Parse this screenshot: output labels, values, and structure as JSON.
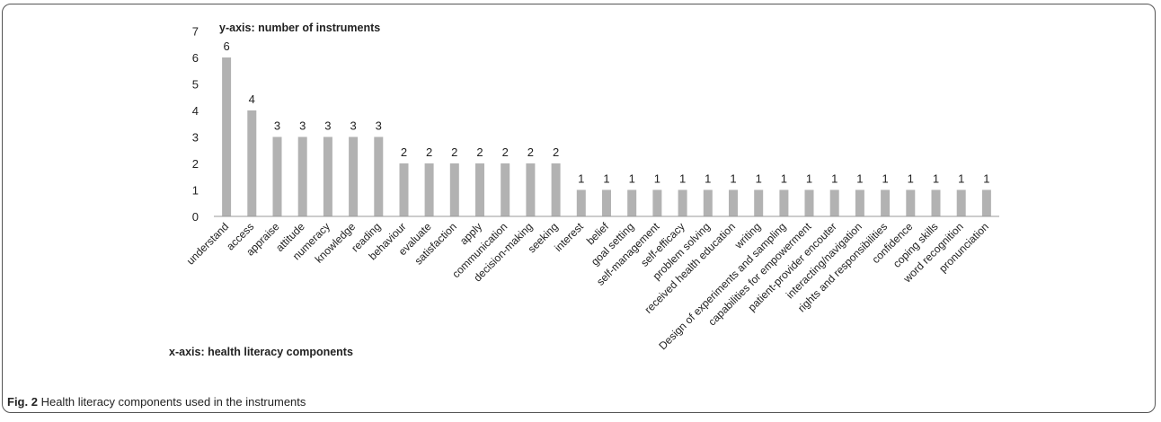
{
  "figure": {
    "label": "Fig. 2",
    "caption": "Health literacy components used in the instruments"
  },
  "chart_data": {
    "type": "bar",
    "ylabel": "y-axis: number of instruments",
    "xlabel": "x-axis: health literacy components",
    "ylim": [
      0,
      7
    ],
    "yticks": [
      0,
      1,
      2,
      3,
      4,
      5,
      6,
      7
    ],
    "grid": false,
    "bar_color": "#b2b2b2",
    "categories": [
      "understand",
      "access",
      "appraise",
      "attitude",
      "numeracy",
      "knowledge",
      "reading",
      "behaviour",
      "evaluate",
      "satisfaction",
      "apply",
      "communication",
      "decision-making",
      "seeking",
      "interest",
      "belief",
      "goal setting",
      "self-management",
      "self-efficacy",
      "problem solving",
      "received health education",
      "writing",
      "Design of experiments and sampling",
      "capabilities for empowerment",
      "patient-provider encouter",
      "interacting/navigation",
      "rights and responsibilities",
      "confidence",
      "coping skills",
      "word recognition",
      "pronunciation"
    ],
    "values": [
      6,
      4,
      3,
      3,
      3,
      3,
      3,
      2,
      2,
      2,
      2,
      2,
      2,
      2,
      1,
      1,
      1,
      1,
      1,
      1,
      1,
      1,
      1,
      1,
      1,
      1,
      1,
      1,
      1,
      1,
      1
    ]
  }
}
